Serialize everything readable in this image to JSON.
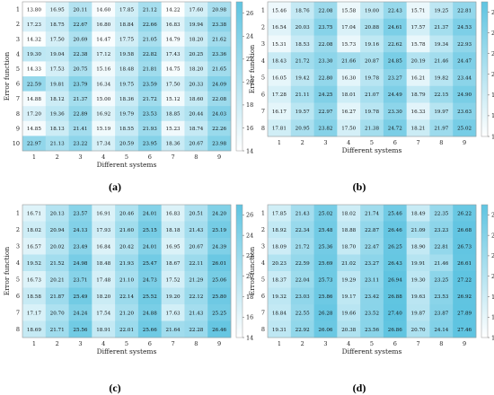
{
  "chart_data": [
    {
      "type": "heatmap",
      "panel_label": "(a)",
      "xlabel": "Different systems",
      "ylabel": "Error function",
      "x_categories": [
        "1",
        "2",
        "3",
        "4",
        "5",
        "6",
        "7",
        "8",
        "9"
      ],
      "y_categories": [
        "1",
        "2",
        "3",
        "4",
        "5",
        "6",
        "7",
        "8",
        "9",
        "10"
      ],
      "values": [
        [
          13.8,
          16.95,
          20.11,
          14.6,
          17.85,
          21.12,
          14.22,
          17.6,
          20.98
        ],
        [
          17.23,
          18.75,
          22.67,
          16.8,
          18.84,
          22.66,
          16.83,
          19.94,
          23.38
        ],
        [
          14.32,
          17.5,
          20.69,
          14.47,
          17.75,
          21.05,
          14.79,
          18.2,
          21.62
        ],
        [
          19.3,
          19.04,
          22.38,
          17.12,
          19.58,
          22.82,
          17.43,
          20.25,
          23.36
        ],
        [
          14.33,
          17.53,
          20.75,
          15.16,
          18.48,
          21.81,
          14.75,
          18.2,
          21.65
        ],
        [
          22.59,
          19.81,
          23.79,
          16.34,
          19.75,
          23.59,
          17.5,
          20.33,
          24.09
        ],
        [
          14.88,
          18.12,
          21.37,
          15.0,
          18.36,
          21.72,
          15.12,
          18.6,
          22.08
        ],
        [
          17.2,
          19.36,
          22.89,
          16.92,
          19.79,
          23.53,
          18.85,
          20.44,
          24.03
        ],
        [
          14.85,
          18.13,
          21.41,
          15.19,
          18.55,
          21.93,
          15.23,
          18.74,
          22.26
        ],
        [
          22.97,
          21.13,
          23.22,
          17.34,
          20.59,
          23.95,
          18.36,
          20.67,
          23.98
        ]
      ],
      "colorbar": {
        "min": 14,
        "max": 27,
        "ticks": [
          "14",
          "16",
          "18",
          "20",
          "22",
          "24",
          "26"
        ]
      }
    },
    {
      "type": "heatmap",
      "panel_label": "(b)",
      "xlabel": "Different systems",
      "ylabel": "Error function",
      "x_categories": [
        "1",
        "2",
        "3",
        "4",
        "5",
        "6",
        "7",
        "8",
        "9"
      ],
      "y_categories": [
        "1",
        "2",
        "3",
        "4",
        "5",
        "6",
        "7",
        "8"
      ],
      "values": [
        [
          15.46,
          18.76,
          22.08,
          15.58,
          19.0,
          22.43,
          15.71,
          19.25,
          22.81
        ],
        [
          16.54,
          20.03,
          23.75,
          17.04,
          20.88,
          24.61,
          17.57,
          21.37,
          24.53
        ],
        [
          15.31,
          18.53,
          22.08,
          15.73,
          19.16,
          22.62,
          15.78,
          19.34,
          22.93
        ],
        [
          18.43,
          21.72,
          23.3,
          21.66,
          20.87,
          24.85,
          20.19,
          21.46,
          24.47
        ],
        [
          16.05,
          19.42,
          22.8,
          16.3,
          19.78,
          23.27,
          16.21,
          19.82,
          23.44
        ],
        [
          17.28,
          21.11,
          24.25,
          18.01,
          21.07,
          24.49,
          18.79,
          22.15,
          24.9
        ],
        [
          16.17,
          19.57,
          22.97,
          16.27,
          19.78,
          23.3,
          16.33,
          19.97,
          23.63
        ],
        [
          17.81,
          20.95,
          23.82,
          17.5,
          21.38,
          24.72,
          18.21,
          21.97,
          25.02
        ]
      ],
      "colorbar": {
        "min": 14,
        "max": 27,
        "ticks": [
          "14",
          "16",
          "18",
          "20",
          "22",
          "24",
          "26"
        ]
      }
    },
    {
      "type": "heatmap",
      "panel_label": "(c)",
      "xlabel": "Different systems",
      "ylabel": "Error function",
      "x_categories": [
        "1",
        "2",
        "3",
        "4",
        "5",
        "6",
        "7",
        "8",
        "9"
      ],
      "y_categories": [
        "1",
        "2",
        "3",
        "4",
        "5",
        "6",
        "7",
        "8"
      ],
      "values": [
        [
          16.71,
          20.13,
          23.57,
          16.91,
          20.46,
          24.01,
          16.83,
          20.51,
          24.2
        ],
        [
          18.02,
          20.94,
          24.13,
          17.93,
          21.6,
          25.15,
          18.18,
          21.43,
          25.19
        ],
        [
          16.57,
          20.02,
          23.49,
          16.84,
          20.42,
          24.01,
          16.95,
          20.67,
          24.39
        ],
        [
          19.52,
          21.52,
          24.98,
          18.48,
          21.93,
          25.47,
          18.67,
          22.11,
          26.01
        ],
        [
          16.73,
          20.21,
          23.71,
          17.48,
          21.1,
          24.73,
          17.52,
          21.29,
          25.06
        ],
        [
          18.58,
          21.87,
          25.49,
          18.2,
          22.14,
          25.52,
          19.2,
          22.12,
          25.8
        ],
        [
          17.17,
          20.7,
          24.24,
          17.54,
          21.2,
          24.88,
          17.63,
          21.43,
          25.25
        ],
        [
          18.69,
          21.71,
          25.56,
          18.91,
          22.01,
          25.66,
          21.64,
          22.28,
          26.46
        ]
      ],
      "colorbar": {
        "min": 14,
        "max": 27,
        "ticks": [
          "14",
          "16",
          "18",
          "20",
          "22",
          "24",
          "26"
        ]
      }
    },
    {
      "type": "heatmap",
      "panel_label": "(d)",
      "xlabel": "Different systems",
      "ylabel": "Error function",
      "x_categories": [
        "1",
        "2",
        "3",
        "4",
        "5",
        "6",
        "7",
        "8",
        "9"
      ],
      "y_categories": [
        "1",
        "2",
        "3",
        "4",
        "5",
        "6",
        "7",
        "8"
      ],
      "values": [
        [
          17.85,
          21.43,
          25.02,
          18.02,
          21.74,
          25.46,
          18.49,
          22.35,
          26.22
        ],
        [
          18.92,
          22.34,
          25.48,
          18.88,
          22.87,
          26.46,
          21.09,
          23.23,
          26.68
        ],
        [
          18.09,
          21.72,
          25.36,
          18.7,
          22.47,
          26.25,
          18.9,
          22.81,
          26.73
        ],
        [
          20.23,
          22.59,
          25.69,
          21.02,
          23.27,
          26.43,
          19.91,
          21.46,
          26.61
        ],
        [
          18.37,
          22.04,
          25.73,
          19.29,
          23.11,
          26.94,
          19.3,
          23.25,
          27.22
        ],
        [
          19.32,
          23.03,
          25.86,
          19.17,
          23.42,
          26.88,
          19.63,
          23.53,
          26.92
        ],
        [
          18.84,
          22.55,
          26.28,
          19.66,
          23.52,
          27.4,
          19.87,
          23.87,
          27.89
        ],
        [
          19.31,
          22.92,
          26.06,
          20.38,
          23.56,
          26.86,
          20.7,
          24.14,
          27.46
        ]
      ],
      "colorbar": {
        "min": 14,
        "max": 27,
        "ticks": [
          "14",
          "16",
          "18",
          "20",
          "22",
          "24",
          "26"
        ]
      }
    }
  ]
}
